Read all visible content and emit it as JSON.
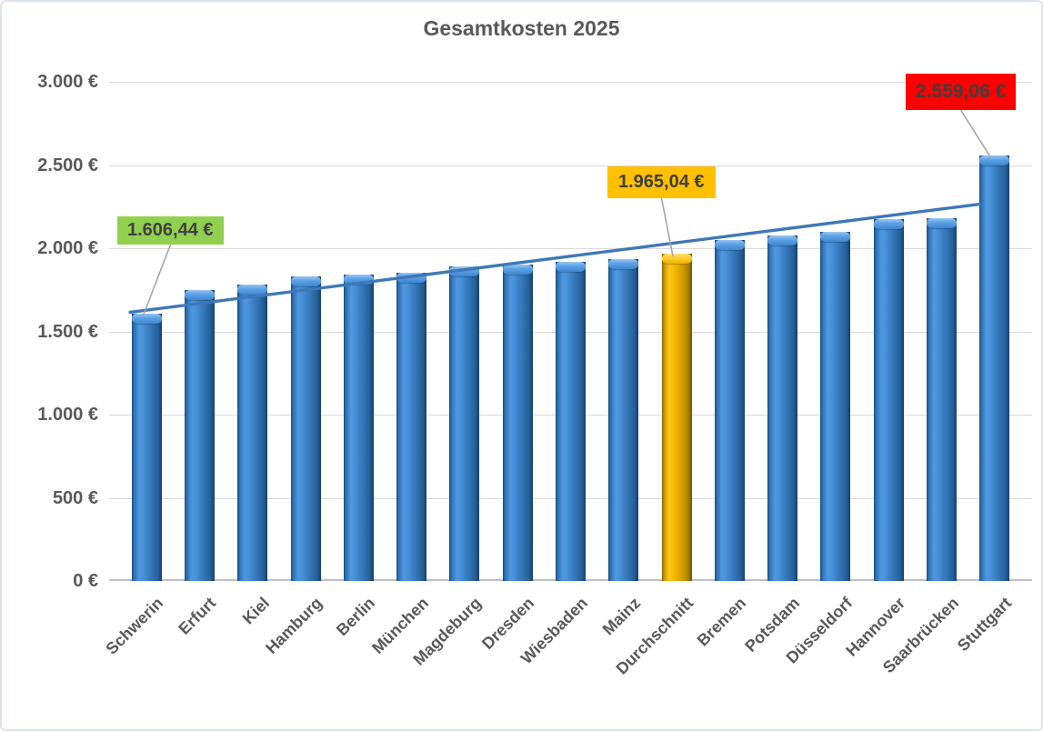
{
  "title": "Gesamtkosten 2025",
  "chart_data": {
    "type": "bar",
    "title": "Gesamtkosten 2025",
    "categories": [
      "Schwerin",
      "Erfurt",
      "Kiel",
      "Hamburg",
      "Berlin",
      "München",
      "Magdeburg",
      "Dresden",
      "Wiesbaden",
      "Mainz",
      "Durchschnitt",
      "Bremen",
      "Potsdam",
      "Düsseldorf",
      "Hannover",
      "Saarbrücken",
      "Stuttgart"
    ],
    "values": [
      1606.44,
      1750,
      1780,
      1830,
      1840,
      1850,
      1890,
      1900,
      1920,
      1935,
      1965.04,
      2050,
      2075,
      2100,
      2175,
      2180,
      2559.06
    ],
    "highlighted_category": "Durchschnitt",
    "xlabel": "",
    "ylabel": "",
    "ylim": [
      0,
      3000
    ],
    "y_tick_step": 500,
    "y_ticks": [
      "3.000 €",
      "2.500 €",
      "2.000 €",
      "1.500 €",
      "1.000 €",
      "500 €",
      "0 €"
    ],
    "grid": true,
    "legend": "none",
    "trendline": {
      "type": "linear",
      "start_value": 1615,
      "end_value": 2265
    },
    "annotations": [
      {
        "label": "1.606,44 €",
        "category": "Schwerin",
        "color": "#92D050"
      },
      {
        "label": "1.965,04 €",
        "category": "Durchschnitt",
        "color": "#FFC000"
      },
      {
        "label": "2.559,06 €",
        "category": "Stuttgart",
        "color": "#FF0000"
      }
    ]
  },
  "colors": {
    "bar_blue": "#3A7FC4",
    "bar_gold": "#FFC000",
    "annotation_green": "#92D050",
    "annotation_gold": "#FFC000",
    "annotation_red": "#FF0000",
    "trendline_blue": "#3E78B8",
    "leader_gray": "#A6A6A6",
    "text_gray": "#595959",
    "gridline_gray": "#D9D9D9"
  }
}
